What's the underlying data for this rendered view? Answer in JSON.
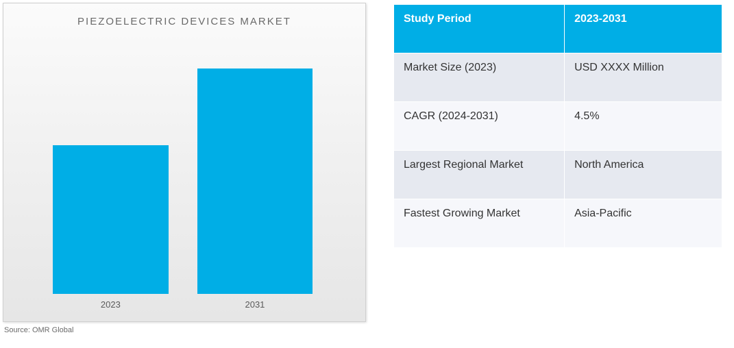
{
  "chart": {
    "type": "bar",
    "title": "PIEZOELECTRIC DEVICES MARKET",
    "title_fontsize": 15,
    "title_color": "#6a6a6a",
    "title_letter_spacing": 2,
    "categories": [
      "2023",
      "2031"
    ],
    "values": [
      58,
      88
    ],
    "ylim": [
      0,
      100
    ],
    "bar_color": "#00aee6",
    "bar_width_pct": 36,
    "bar_positions_pct": [
      27,
      72
    ],
    "background_gradient": [
      "#fbfbfb",
      "#f0f0f0",
      "#e6e6e6"
    ],
    "border_color": "#d0d0d0",
    "xlabel_fontsize": 13,
    "xlabel_color": "#5a5a5a"
  },
  "source_label": "Source: OMR Global",
  "table": {
    "header_bg": "#00aee6",
    "header_fg": "#ffffff",
    "row_odd_bg": "#e6e9f0",
    "row_even_bg": "#f6f7fb",
    "border_color": "#ffffff",
    "header": [
      "Study Period",
      "2023-2031"
    ],
    "rows": [
      {
        "label": "Market Size (2023)",
        "value": "USD XXXX Million"
      },
      {
        "label": "CAGR (2024-2031)",
        "value": "4.5%"
      },
      {
        "label": "Largest Regional Market",
        "value": "North America"
      },
      {
        "label": "Fastest Growing Market",
        "value": "Asia-Pacific"
      }
    ]
  }
}
